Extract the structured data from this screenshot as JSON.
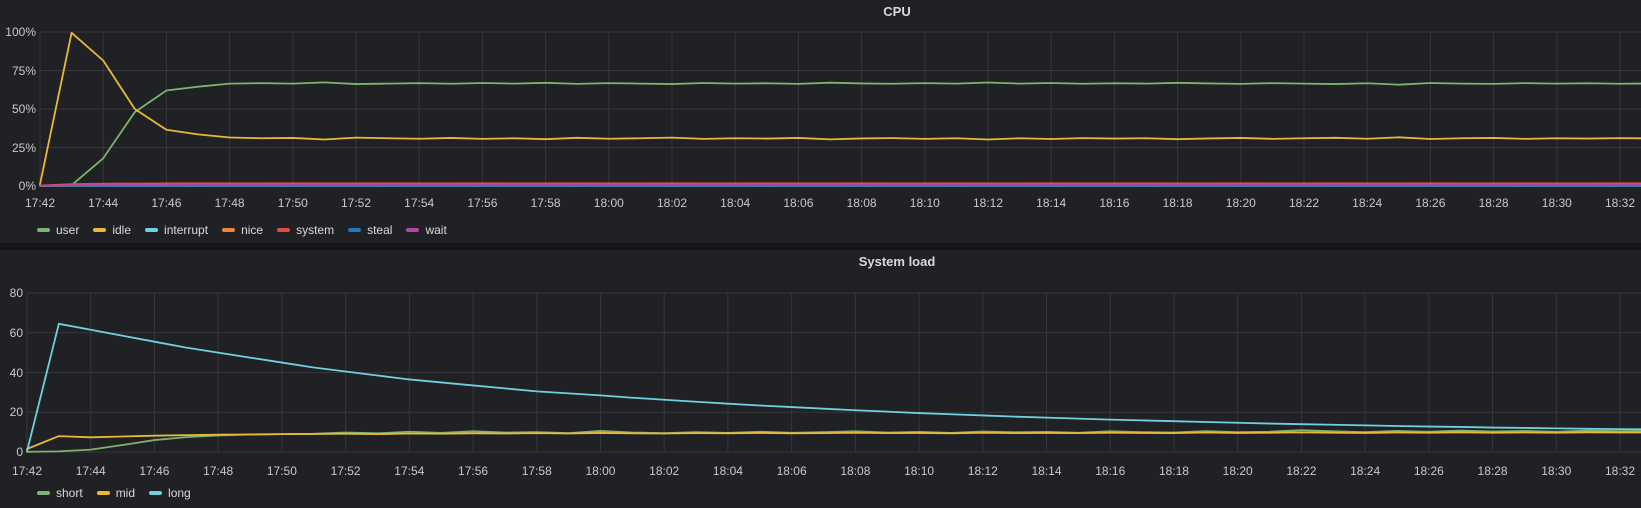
{
  "theme": {
    "page_background": "#141517",
    "panel_background": "#202124",
    "grid_color": "#35373b",
    "tick_text_color": "#c8c9ca",
    "title_text_color": "#d8d9da",
    "legend_text_color": "#d8d9da"
  },
  "chart_data": [
    {
      "type": "line",
      "title": "CPU",
      "x_start": "17:42",
      "x_step_minutes": 1,
      "x_tick_step_minutes": 2,
      "x_ticks": [
        "17:42",
        "17:44",
        "17:46",
        "17:48",
        "17:50",
        "17:52",
        "17:54",
        "17:56",
        "17:58",
        "18:00",
        "18:02",
        "18:04",
        "18:06",
        "18:08",
        "18:10",
        "18:12",
        "18:14",
        "18:16",
        "18:18",
        "18:20",
        "18:22",
        "18:24",
        "18:26",
        "18:28",
        "18:30",
        "18:32"
      ],
      "ylim": [
        0,
        100
      ],
      "y_ticks": [
        "0%",
        "25%",
        "50%",
        "75%",
        "100%"
      ],
      "y_unit": "percent",
      "grid": true,
      "legend_position": "bottom-left",
      "series": [
        {
          "name": "user",
          "color": "#7EB26D",
          "values": [
            0.3,
            0.5,
            18,
            48,
            62,
            64.5,
            66.5,
            66.8,
            66.5,
            67.3,
            66.2,
            66.5,
            66.8,
            66.4,
            66.9,
            66.5,
            67,
            66.3,
            66.8,
            66.5,
            66.2,
            66.9,
            66.5,
            66.7,
            66.3,
            67.1,
            66.6,
            66.4,
            66.8,
            66.5,
            67.2,
            66.5,
            66.9,
            66.4,
            66.7,
            66.5,
            67,
            66.6,
            66.3,
            66.8,
            66.5,
            66.2,
            66.7,
            65.8,
            66.9,
            66.5,
            66.3,
            66.8,
            66.5,
            66.7,
            66.4,
            66.6
          ]
        },
        {
          "name": "idle",
          "color": "#EAB839",
          "values": [
            1,
            99.5,
            81.5,
            50,
            36.5,
            33.5,
            31.5,
            31,
            31.2,
            30.2,
            31.4,
            31,
            30.7,
            31.2,
            30.6,
            31,
            30.4,
            31.3,
            30.7,
            31,
            31.4,
            30.6,
            31,
            30.8,
            31.2,
            30.3,
            30.9,
            31.1,
            30.6,
            31,
            30.2,
            31,
            30.5,
            31.1,
            30.8,
            31,
            30.4,
            30.9,
            31.2,
            30.6,
            31,
            31.3,
            30.7,
            31.6,
            30.5,
            31,
            31.2,
            30.6,
            31,
            30.8,
            31.1,
            30.9
          ]
        },
        {
          "name": "interrupt",
          "color": "#6ED0E0",
          "values": [
            0.1,
            0.1,
            0.1,
            0.1,
            0.1,
            0.1,
            0.1,
            0.1,
            0.1,
            0.1,
            0.1,
            0.1,
            0.1,
            0.1,
            0.1,
            0.1,
            0.1,
            0.1,
            0.1,
            0.1,
            0.1,
            0.1,
            0.1,
            0.1,
            0.1,
            0.1,
            0.1,
            0.1,
            0.1,
            0.1,
            0.1,
            0.1,
            0.1,
            0.1,
            0.1,
            0.1,
            0.1,
            0.1,
            0.1,
            0.1,
            0.1,
            0.1,
            0.1,
            0.1,
            0.1,
            0.1,
            0.1,
            0.1,
            0.1,
            0.1,
            0.1,
            0.1
          ]
        },
        {
          "name": "nice",
          "color": "#EF843C",
          "values": [
            0.2,
            0.2,
            0.2,
            0.2,
            0.2,
            0.2,
            0.2,
            0.2,
            0.2,
            0.2,
            0.2,
            0.2,
            0.2,
            0.2,
            0.2,
            0.2,
            0.2,
            0.2,
            0.2,
            0.2,
            0.2,
            0.2,
            0.2,
            0.2,
            0.2,
            0.2,
            0.2,
            0.2,
            0.2,
            0.2,
            0.2,
            0.2,
            0.2,
            0.2,
            0.2,
            0.2,
            0.2,
            0.2,
            0.2,
            0.2,
            0.2,
            0.2,
            0.2,
            0.2,
            0.2,
            0.2,
            0.2,
            0.2,
            0.2,
            0.2,
            0.2,
            0.2
          ]
        },
        {
          "name": "system",
          "color": "#E24D42",
          "values": [
            0.3,
            1.2,
            1.5,
            1.6,
            1.7,
            1.8,
            1.7,
            1.7,
            1.8,
            1.7,
            1.7,
            1.8,
            1.7,
            1.7,
            1.8,
            1.7,
            1.7,
            1.8,
            1.7,
            1.7,
            1.8,
            1.7,
            1.7,
            1.8,
            1.7,
            1.7,
            1.8,
            1.7,
            1.7,
            1.8,
            1.7,
            1.7,
            1.8,
            1.7,
            1.7,
            1.8,
            1.7,
            1.7,
            1.8,
            1.7,
            1.7,
            1.8,
            1.7,
            1.7,
            1.8,
            1.7,
            1.7,
            1.8,
            1.7,
            1.7,
            1.8,
            1.7
          ]
        },
        {
          "name": "steal",
          "color": "#1F78C1",
          "values": [
            0.1,
            0.1,
            0.1,
            0.1,
            0.1,
            0.1,
            0.1,
            0.1,
            0.1,
            0.1,
            0.1,
            0.1,
            0.1,
            0.1,
            0.1,
            0.1,
            0.1,
            0.1,
            0.1,
            0.1,
            0.1,
            0.1,
            0.1,
            0.1,
            0.1,
            0.1,
            0.1,
            0.1,
            0.1,
            0.1,
            0.1,
            0.1,
            0.1,
            0.1,
            0.1,
            0.1,
            0.1,
            0.1,
            0.1,
            0.1,
            0.1,
            0.1,
            0.1,
            0.1,
            0.1,
            0.1,
            0.1,
            0.1,
            0.1,
            0.1,
            0.1,
            0.1
          ]
        },
        {
          "name": "wait",
          "color": "#BA43A9",
          "values": [
            0.2,
            0.5,
            0.6,
            0.6,
            0.6,
            0.6,
            0.6,
            0.6,
            0.6,
            0.6,
            0.6,
            0.6,
            0.6,
            0.6,
            0.6,
            0.6,
            0.6,
            0.6,
            0.6,
            0.6,
            0.6,
            0.6,
            0.6,
            0.6,
            0.6,
            0.6,
            0.6,
            0.6,
            0.6,
            0.6,
            0.6,
            0.6,
            0.6,
            0.6,
            0.6,
            0.6,
            0.6,
            0.6,
            0.6,
            0.6,
            0.6,
            0.6,
            0.6,
            0.6,
            0.6,
            0.6,
            0.6,
            0.6,
            0.6,
            0.6,
            0.6,
            0.6
          ]
        }
      ]
    },
    {
      "type": "line",
      "title": "System load",
      "x_start": "17:42",
      "x_step_minutes": 1,
      "x_tick_step_minutes": 2,
      "x_ticks": [
        "17:42",
        "17:44",
        "17:46",
        "17:48",
        "17:50",
        "17:52",
        "17:54",
        "17:56",
        "17:58",
        "18:00",
        "18:02",
        "18:04",
        "18:06",
        "18:08",
        "18:10",
        "18:12",
        "18:14",
        "18:16",
        "18:18",
        "18:20",
        "18:22",
        "18:24",
        "18:26",
        "18:28",
        "18:30",
        "18:32"
      ],
      "ylim": [
        0,
        80
      ],
      "y_ticks": [
        "0",
        "20",
        "40",
        "60",
        "80"
      ],
      "y_unit": "load",
      "grid": true,
      "legend_position": "bottom-left",
      "series": [
        {
          "name": "short",
          "color": "#7EB26D",
          "values": [
            0.1,
            0.3,
            1.2,
            3.5,
            6,
            7.5,
            8.3,
            8.8,
            9,
            9.2,
            9.8,
            9.4,
            10.2,
            9.6,
            10.4,
            9.8,
            10,
            9.5,
            10.6,
            9.8,
            9.5,
            10,
            9.6,
            10.2,
            9.7,
            10,
            10.4,
            9.8,
            10.1,
            9.6,
            10.3,
            9.9,
            10.1,
            9.7,
            10.4,
            10,
            9.8,
            10.5,
            10,
            10.2,
            11,
            10.4,
            10,
            10.6,
            10.2,
            10.8,
            10.3,
            10.6,
            10.2,
            10.8,
            10.5,
            10.6
          ]
        },
        {
          "name": "mid",
          "color": "#EAB839",
          "values": [
            1.5,
            8,
            7.4,
            7.8,
            8.2,
            8.5,
            8.7,
            8.8,
            9,
            9.1,
            9.2,
            9,
            9.3,
            9.2,
            9.4,
            9.3,
            9.5,
            9.3,
            9.6,
            9.4,
            9.3,
            9.5,
            9.4,
            9.6,
            9.4,
            9.5,
            9.7,
            9.5,
            9.6,
            9.4,
            9.7,
            9.5,
            9.6,
            9.5,
            9.7,
            9.6,
            9.5,
            9.8,
            9.6,
            9.7,
            9.9,
            9.7,
            9.6,
            9.8,
            9.7,
            9.9,
            9.7,
            9.8,
            9.7,
            9.9,
            9.8,
            9.8
          ]
        },
        {
          "name": "long",
          "color": "#6ED0E0",
          "values": [
            0.3,
            64.5,
            61.5,
            58.5,
            55.5,
            52.5,
            50,
            47.5,
            45,
            42.5,
            40.5,
            38.5,
            36.5,
            35,
            33.5,
            32,
            30.5,
            29.5,
            28.5,
            27.3,
            26.3,
            25.3,
            24.3,
            23.4,
            22.6,
            21.8,
            21,
            20.3,
            19.6,
            19,
            18.4,
            17.8,
            17.3,
            16.8,
            16.3,
            15.9,
            15.5,
            15.1,
            14.7,
            14.3,
            14,
            13.7,
            13.4,
            13.1,
            12.8,
            12.6,
            12.3,
            12.1,
            11.9,
            11.7,
            11.5,
            11.4
          ]
        }
      ]
    }
  ]
}
